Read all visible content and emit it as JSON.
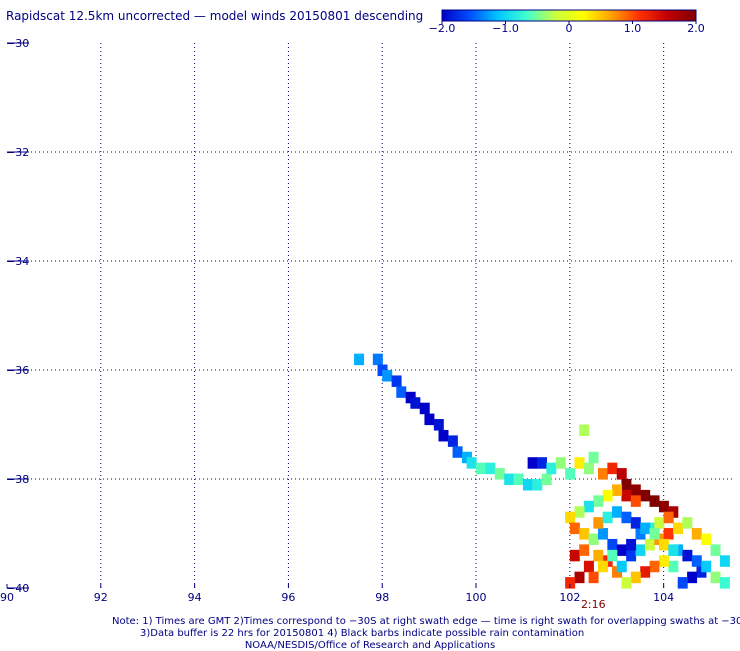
{
  "title": "Rapidscat 12.5km uncorrected — model winds 20150801 descending",
  "colorbar": {
    "ticks": [
      "−2.0",
      "−1.0",
      "0",
      "1.0",
      "2.0"
    ],
    "tick_values": [
      -2.0,
      -1.0,
      0,
      1.0,
      2.0
    ],
    "colors": [
      "#0000c8",
      "#0050ff",
      "#00c8ff",
      "#40ffd0",
      "#c8ff40",
      "#ffff00",
      "#ffa000",
      "#ff3000",
      "#c00000",
      "#800000"
    ]
  },
  "time_label": "2:16",
  "notes": {
    "line1": "Note: 1) Times are GMT 2)Times correspond to −30S at right swath edge — time is right swath for overlapping swaths at −30S",
    "line2": "3)Data buffer is 22 hrs for 20150801 4) Black barbs indicate possible rain contamination",
    "line3": "NOAA/NESDIS/Office of Research and Applications"
  },
  "chart_data": {
    "type": "heatmap",
    "title": "Rapidscat 12.5km uncorrected — model winds 20150801 descending",
    "xlabel": "",
    "ylabel": "",
    "xlim": [
      90,
      105.5
    ],
    "ylim": [
      -40,
      -30
    ],
    "x_ticks": [
      "90",
      "92",
      "94",
      "96",
      "98",
      "100",
      "102",
      "104"
    ],
    "x_tick_values": [
      90,
      92,
      94,
      96,
      98,
      100,
      102,
      104
    ],
    "y_ticks": [
      "−30",
      "−32",
      "−34",
      "−36",
      "−38",
      "−40"
    ],
    "y_tick_values": [
      -30,
      -32,
      -34,
      -36,
      -38,
      -40
    ],
    "grid": true,
    "color_range": [
      -2.0,
      2.0
    ],
    "cell_size_deg": 0.2,
    "cells": [
      [
        97.5,
        -35.8,
        -1.2
      ],
      [
        97.9,
        -35.8,
        -1.4
      ],
      [
        98.0,
        -36.0,
        -1.6
      ],
      [
        98.1,
        -36.1,
        -1.3
      ],
      [
        98.3,
        -36.2,
        -1.7
      ],
      [
        98.4,
        -36.4,
        -1.5
      ],
      [
        98.6,
        -36.5,
        -2.0
      ],
      [
        98.7,
        -36.6,
        -1.9
      ],
      [
        98.9,
        -36.7,
        -2.0
      ],
      [
        99.0,
        -36.9,
        -2.0
      ],
      [
        99.2,
        -37.0,
        -1.9
      ],
      [
        99.3,
        -37.2,
        -2.0
      ],
      [
        99.5,
        -37.3,
        -1.8
      ],
      [
        99.6,
        -37.5,
        -1.5
      ],
      [
        99.8,
        -37.6,
        -1.2
      ],
      [
        99.9,
        -37.7,
        -0.9
      ],
      [
        100.1,
        -37.8,
        -0.6
      ],
      [
        100.3,
        -37.8,
        -0.8
      ],
      [
        100.5,
        -37.9,
        -0.5
      ],
      [
        100.7,
        -38.0,
        -0.9
      ],
      [
        100.9,
        -38.0,
        -0.6
      ],
      [
        101.1,
        -38.1,
        -1.0
      ],
      [
        101.3,
        -38.1,
        -0.8
      ],
      [
        101.5,
        -38.0,
        -0.5
      ],
      [
        101.2,
        -37.7,
        -2.0
      ],
      [
        101.4,
        -37.7,
        -1.8
      ],
      [
        101.6,
        -37.8,
        -0.8
      ],
      [
        101.8,
        -37.7,
        -0.4
      ],
      [
        102.0,
        -37.9,
        -0.6
      ],
      [
        102.2,
        -37.7,
        0.3
      ],
      [
        102.4,
        -37.8,
        -0.4
      ],
      [
        102.3,
        -37.1,
        -0.3
      ],
      [
        102.5,
        -37.6,
        -0.5
      ],
      [
        102.7,
        -37.9,
        0.8
      ],
      [
        102.9,
        -37.8,
        1.2
      ],
      [
        103.1,
        -37.9,
        1.6
      ],
      [
        103.2,
        -38.1,
        2.0
      ],
      [
        103.4,
        -38.2,
        1.9
      ],
      [
        103.6,
        -38.3,
        2.0
      ],
      [
        103.8,
        -38.4,
        2.0
      ],
      [
        104.0,
        -38.5,
        1.9
      ],
      [
        104.2,
        -38.6,
        1.7
      ],
      [
        103.2,
        -38.3,
        1.5
      ],
      [
        103.4,
        -38.4,
        1.0
      ],
      [
        103.0,
        -38.2,
        0.6
      ],
      [
        102.8,
        -38.3,
        0.2
      ],
      [
        102.6,
        -38.4,
        -0.5
      ],
      [
        102.4,
        -38.5,
        -0.9
      ],
      [
        102.2,
        -38.6,
        -0.3
      ],
      [
        102.0,
        -38.7,
        0.4
      ],
      [
        102.1,
        -38.9,
        0.9
      ],
      [
        102.3,
        -39.0,
        0.5
      ],
      [
        102.5,
        -39.1,
        -0.4
      ],
      [
        102.7,
        -39.0,
        -1.3
      ],
      [
        102.9,
        -39.2,
        -1.6
      ],
      [
        103.1,
        -39.3,
        -2.0
      ],
      [
        103.3,
        -39.4,
        -1.7
      ],
      [
        103.5,
        -39.3,
        -1.0
      ],
      [
        103.7,
        -39.2,
        -0.2
      ],
      [
        103.9,
        -39.1,
        0.7
      ],
      [
        104.1,
        -39.0,
        1.1
      ],
      [
        104.3,
        -38.9,
        0.4
      ],
      [
        104.5,
        -38.8,
        -0.3
      ],
      [
        104.7,
        -39.0,
        0.6
      ],
      [
        104.9,
        -39.1,
        0.2
      ],
      [
        105.1,
        -39.3,
        -0.5
      ],
      [
        105.3,
        -39.5,
        -1.0
      ],
      [
        104.8,
        -39.7,
        -1.8
      ],
      [
        104.6,
        -39.8,
        -2.0
      ],
      [
        104.4,
        -39.9,
        -1.6
      ],
      [
        104.2,
        -39.6,
        -0.6
      ],
      [
        104.0,
        -39.5,
        0.3
      ],
      [
        103.8,
        -39.6,
        0.9
      ],
      [
        103.6,
        -39.7,
        1.3
      ],
      [
        103.4,
        -39.8,
        0.5
      ],
      [
        103.2,
        -39.9,
        -0.2
      ],
      [
        103.0,
        -39.7,
        0.8
      ],
      [
        102.8,
        -39.5,
        1.2
      ],
      [
        102.6,
        -39.4,
        0.6
      ],
      [
        102.4,
        -39.6,
        1.4
      ],
      [
        102.2,
        -39.8,
        1.7
      ],
      [
        102.0,
        -39.9,
        1.2
      ],
      [
        102.1,
        -39.4,
        1.5
      ],
      [
        102.3,
        -39.3,
        0.9
      ],
      [
        102.5,
        -39.8,
        1.0
      ],
      [
        102.7,
        -39.6,
        0.4
      ],
      [
        102.9,
        -39.4,
        -0.6
      ],
      [
        103.1,
        -39.6,
        -1.1
      ],
      [
        103.3,
        -39.2,
        -1.9
      ],
      [
        103.5,
        -39.0,
        -1.4
      ],
      [
        103.7,
        -38.9,
        -0.8
      ],
      [
        103.9,
        -38.8,
        -0.2
      ],
      [
        104.1,
        -38.7,
        0.9
      ],
      [
        104.3,
        -39.3,
        -1.2
      ],
      [
        104.5,
        -39.4,
        -1.9
      ],
      [
        104.7,
        -39.5,
        -1.5
      ],
      [
        104.9,
        -39.6,
        -1.1
      ],
      [
        105.1,
        -39.8,
        -0.4
      ],
      [
        105.3,
        -39.9,
        -0.7
      ],
      [
        102.6,
        -38.8,
        0.7
      ],
      [
        102.8,
        -38.7,
        -0.8
      ],
      [
        103.0,
        -38.6,
        -1.2
      ],
      [
        103.2,
        -38.7,
        -1.5
      ],
      [
        103.4,
        -38.8,
        -1.8
      ],
      [
        103.6,
        -38.9,
        -1.2
      ],
      [
        103.8,
        -39.0,
        -0.5
      ],
      [
        104.0,
        -39.2,
        0.4
      ],
      [
        104.2,
        -39.3,
        -0.9
      ]
    ]
  }
}
